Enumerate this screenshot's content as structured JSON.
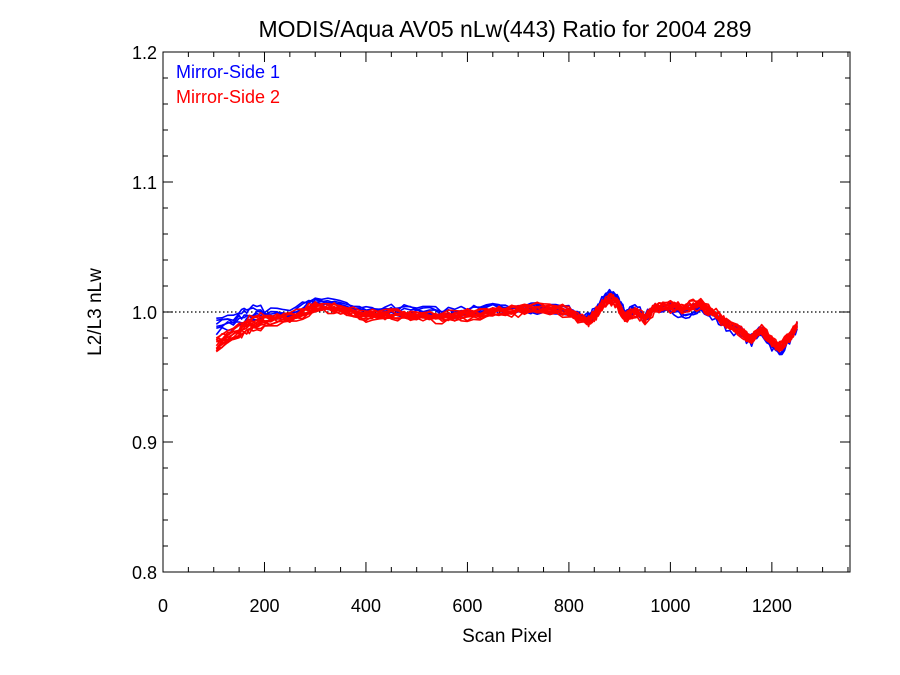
{
  "chart_data": {
    "type": "line",
    "title": "MODIS/Aqua AV05 nLw(443) Ratio for 2004 289",
    "xlabel": "Scan Pixel",
    "ylabel": "L2/L3 nLw",
    "xlim": [
      0,
      1354
    ],
    "ylim": [
      0.8,
      1.2
    ],
    "xticks": [
      0,
      200,
      400,
      600,
      800,
      1000,
      1200
    ],
    "xtick_labels": [
      "0",
      "200",
      "400",
      "600",
      "800",
      "1000",
      "1200"
    ],
    "yticks": [
      0.8,
      0.9,
      1.0,
      1.1,
      1.2
    ],
    "ytick_labels": [
      "0.8",
      "0.9",
      "1.0",
      "1.1",
      "1.2"
    ],
    "reference_line": 1.0,
    "grid": false,
    "legend_placement": "top-left",
    "x_range": [
      105,
      1250
    ],
    "series": [
      {
        "name": "Mirror-Side 1",
        "color": "#0000ff",
        "count": 6,
        "x": [
          105,
          150,
          170,
          200,
          250,
          300,
          350,
          400,
          450,
          500,
          550,
          600,
          650,
          700,
          750,
          800,
          835,
          850,
          865,
          880,
          895,
          910,
          930,
          950,
          970,
          1000,
          1030,
          1060,
          1090,
          1110,
          1140,
          1160,
          1180,
          1200,
          1215,
          1235,
          1250
        ],
        "y": [
          0.99,
          0.994,
          0.998,
          0.998,
          0.998,
          1.008,
          1.005,
          1.0,
          1.001,
          1.0,
          0.999,
          1.001,
          1.004,
          1.002,
          1.003,
          1.001,
          0.995,
          0.998,
          1.008,
          1.015,
          1.01,
          0.998,
          1.002,
          0.996,
          1.004,
          1.002,
          1.0,
          1.004,
          0.996,
          0.99,
          0.984,
          0.978,
          0.986,
          0.975,
          0.97,
          0.98,
          0.99
        ]
      },
      {
        "name": "Mirror-Side 2",
        "color": "#ff0000",
        "count": 12,
        "x": [
          105,
          150,
          170,
          200,
          250,
          300,
          350,
          400,
          450,
          500,
          550,
          600,
          650,
          700,
          750,
          800,
          835,
          850,
          865,
          880,
          895,
          910,
          930,
          950,
          970,
          1000,
          1030,
          1060,
          1090,
          1110,
          1140,
          1160,
          1180,
          1200,
          1215,
          1235,
          1250
        ],
        "y": [
          0.975,
          0.985,
          0.99,
          0.994,
          0.995,
          1.004,
          1.002,
          0.997,
          0.998,
          0.997,
          0.996,
          0.998,
          1.0,
          1.001,
          1.003,
          1.0,
          0.993,
          0.997,
          1.005,
          1.01,
          1.007,
          0.996,
          1.0,
          0.995,
          1.003,
          1.004,
          1.003,
          1.006,
          0.998,
          0.991,
          0.985,
          0.979,
          0.986,
          0.977,
          0.973,
          0.981,
          0.99
        ]
      }
    ]
  }
}
